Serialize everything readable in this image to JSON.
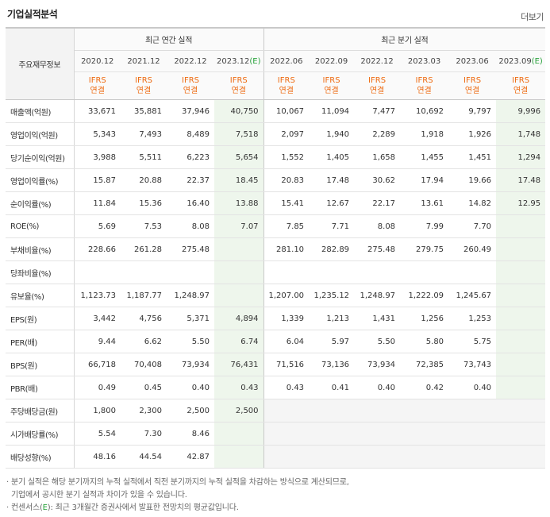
{
  "header": {
    "title": "기업실적분석",
    "more": "더보기"
  },
  "table": {
    "key_header": "주요재무정보",
    "group_annual": "최근 연간 실적",
    "group_quarter": "최근 분기 실적",
    "periods": [
      "2020.12",
      "2021.12",
      "2022.12",
      "2023.12",
      "2022.06",
      "2022.09",
      "2022.12",
      "2023.03",
      "2023.06",
      "2023.09"
    ],
    "period_est_mark": "(E)",
    "ifrs_line1": "IFRS",
    "ifrs_line2": "연결",
    "rows": [
      {
        "label": "매출액(억원)",
        "values": [
          "33,671",
          "35,881",
          "37,946",
          "40,750",
          "10,067",
          "11,094",
          "7,477",
          "10,692",
          "9,797",
          "9,996"
        ]
      },
      {
        "label": "영업이익(억원)",
        "values": [
          "5,343",
          "7,493",
          "8,489",
          "7,518",
          "2,097",
          "1,940",
          "2,289",
          "1,918",
          "1,926",
          "1,748"
        ]
      },
      {
        "label": "당기순이익(억원)",
        "values": [
          "3,988",
          "5,511",
          "6,223",
          "5,654",
          "1,552",
          "1,405",
          "1,658",
          "1,455",
          "1,451",
          "1,294"
        ]
      },
      {
        "label": "영업이익률(%)",
        "values": [
          "15.87",
          "20.88",
          "22.37",
          "18.45",
          "20.83",
          "17.48",
          "30.62",
          "17.94",
          "19.66",
          "17.48"
        ]
      },
      {
        "label": "순이익률(%)",
        "values": [
          "11.84",
          "15.36",
          "16.40",
          "13.88",
          "15.41",
          "12.67",
          "22.17",
          "13.61",
          "14.82",
          "12.95"
        ]
      },
      {
        "label": "ROE(%)",
        "values": [
          "5.69",
          "7.53",
          "8.08",
          "7.07",
          "7.85",
          "7.71",
          "8.08",
          "7.99",
          "7.70",
          ""
        ]
      },
      {
        "label": "부채비율(%)",
        "values": [
          "228.66",
          "261.28",
          "275.48",
          "",
          "281.10",
          "282.89",
          "275.48",
          "279.75",
          "260.49",
          ""
        ]
      },
      {
        "label": "당좌비율(%)",
        "values": [
          "",
          "",
          "",
          "",
          "",
          "",
          "",
          "",
          "",
          ""
        ]
      },
      {
        "label": "유보율(%)",
        "values": [
          "1,123.73",
          "1,187.77",
          "1,248.97",
          "",
          "1,207.00",
          "1,235.12",
          "1,248.97",
          "1,222.09",
          "1,245.67",
          ""
        ]
      },
      {
        "label": "EPS(원)",
        "values": [
          "3,442",
          "4,756",
          "5,371",
          "4,894",
          "1,339",
          "1,213",
          "1,431",
          "1,256",
          "1,253",
          ""
        ]
      },
      {
        "label": "PER(배)",
        "values": [
          "9.44",
          "6.62",
          "5.50",
          "6.74",
          "6.04",
          "5.97",
          "5.50",
          "5.80",
          "5.75",
          ""
        ]
      },
      {
        "label": "BPS(원)",
        "values": [
          "66,718",
          "70,408",
          "73,934",
          "76,431",
          "71,516",
          "73,136",
          "73,934",
          "72,385",
          "73,743",
          ""
        ]
      },
      {
        "label": "PBR(배)",
        "values": [
          "0.49",
          "0.45",
          "0.40",
          "0.43",
          "0.43",
          "0.41",
          "0.40",
          "0.42",
          "0.40",
          ""
        ]
      },
      {
        "label": "주당배당금(원)",
        "values": [
          "1,800",
          "2,300",
          "2,500",
          "2,500",
          "",
          "",
          "",
          "",
          "",
          ""
        ]
      },
      {
        "label": "시가배당률(%)",
        "values": [
          "5.54",
          "7.30",
          "8.46",
          "",
          "",
          "",
          "",
          "",
          "",
          ""
        ]
      },
      {
        "label": "배당성향(%)",
        "values": [
          "48.16",
          "44.54",
          "42.87",
          "",
          "",
          "",
          "",
          "",
          "",
          ""
        ]
      }
    ]
  },
  "notes": {
    "line1": "· 분기 실적은 해당 분기까지의 누적 실적에서 직전 분기까지의 누적 실적을 차감하는 방식으로 계산되므로,",
    "line2": "  기업에서 공시한 분기 실적과 차이가 있을 수 있습니다.",
    "line3_prefix": "· 컨센서스(",
    "line3_e": "E",
    "line3_suffix": "): 최근 3개월간 증권사에서 발표한 전망치의 평균값입니다."
  }
}
